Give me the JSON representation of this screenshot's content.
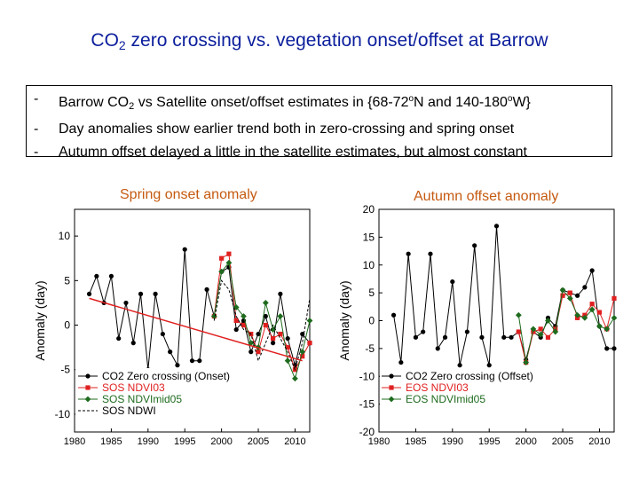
{
  "title": {
    "prefix": "CO",
    "subscript": "2",
    "suffix": " zero crossing vs. vegetation onset/offset at Barrow"
  },
  "bullets": {
    "dash": "-",
    "b1": {
      "part1": "Barrow CO",
      "sub": "2",
      "part2": " vs Satellite onset/offset estimates in {68-72",
      "sup1": "o",
      "part3": "N and 140-180",
      "sup2": "o",
      "part4": "W}"
    },
    "b2": "Day anomalies show earlier trend both in zero-crossing and spring onset",
    "b3": "Autumn offset delayed a little in the satellite estimates, but almost constant"
  },
  "colors": {
    "black": "#000000",
    "red": "#e02020",
    "green": "#1e6b1e",
    "trend": "#e02020",
    "title": "#0b1e9c",
    "caption": "#c55a11"
  },
  "chart_data": [
    {
      "type": "line",
      "caption": "Spring onset anomaly",
      "ylabel": "Anomaly (day)",
      "xlim": [
        1980,
        2012
      ],
      "ylim": [
        -12,
        13
      ],
      "xticks": [
        1980,
        1985,
        1990,
        1995,
        2000,
        2005,
        2010
      ],
      "yticks": [
        -10,
        -5,
        0,
        5,
        10
      ],
      "legend": "bottom-left",
      "series": [
        {
          "name": "CO2 Zero crossing (Onset)",
          "style": "black-circle",
          "x": [
            1982,
            1983,
            1984,
            1985,
            1986,
            1987,
            1988,
            1989,
            1990,
            1991,
            1992,
            1993,
            1994,
            1995,
            1996,
            1997,
            1998,
            1999,
            2000,
            2001,
            2002,
            2003,
            2004,
            2005,
            2006,
            2007,
            2008,
            2009,
            2010,
            2011,
            2012
          ],
          "y": [
            3.5,
            5.5,
            2.5,
            5.5,
            -1.5,
            2.5,
            -2,
            3.5,
            -5,
            3.5,
            -1,
            -3,
            -4.5,
            8.5,
            -4,
            -4,
            4,
            1,
            6,
            6.5,
            -0.5,
            0.5,
            -3,
            -1,
            1,
            -2,
            3.5,
            -1.5,
            -4.5,
            -1,
            -2
          ]
        },
        {
          "name": "SOS NDVI03",
          "style": "red-square",
          "x": [
            1999,
            2000,
            2001,
            2002,
            2003,
            2004,
            2005,
            2006,
            2007,
            2008,
            2009,
            2010,
            2011,
            2012
          ],
          "y": [
            1,
            7.5,
            8,
            0.5,
            0,
            -1,
            -3,
            0,
            -1.5,
            -1,
            -2.5,
            -5,
            -3.5,
            -2
          ]
        },
        {
          "name": "SOS NDVImid05",
          "style": "green-diamond",
          "x": [
            1999,
            2000,
            2001,
            2002,
            2003,
            2004,
            2005,
            2006,
            2007,
            2008,
            2009,
            2010,
            2011,
            2012
          ],
          "y": [
            1,
            6,
            7,
            2,
            1,
            -2,
            -2.5,
            2.5,
            -0.5,
            1,
            -4,
            -6,
            -3,
            0.5
          ]
        },
        {
          "name": "SOS NDWI",
          "style": "black-dashed",
          "x": [
            1999,
            2000,
            2001,
            2002,
            2003,
            2004,
            2005,
            2006,
            2007,
            2008,
            2009,
            2010,
            2011,
            2012
          ],
          "y": [
            0.5,
            5,
            4,
            1,
            -0.5,
            -1,
            -4,
            -2,
            0,
            -1.5,
            -3,
            -5,
            -2,
            3
          ]
        },
        {
          "name": "Onset trend",
          "style": "trend",
          "legend": false,
          "x": [
            1982,
            2011
          ],
          "y": [
            3.0,
            -4.0
          ]
        }
      ]
    },
    {
      "type": "line",
      "caption": "Autumn offset anomaly",
      "ylabel": "Anomaly (day)",
      "xlim": [
        1980,
        2012
      ],
      "ylim": [
        -20,
        20
      ],
      "xticks": [
        1980,
        1985,
        1990,
        1995,
        2000,
        2005,
        2010
      ],
      "yticks": [
        -20,
        -15,
        -10,
        -5,
        0,
        5,
        10,
        15,
        20
      ],
      "legend": "bottom-left",
      "series": [
        {
          "name": "CO2 Zero crossing (Offset)",
          "style": "black-circle",
          "x": [
            1982,
            1983,
            1984,
            1985,
            1986,
            1987,
            1988,
            1989,
            1990,
            1991,
            1992,
            1993,
            1994,
            1995,
            1996,
            1997,
            1998,
            1999,
            2000,
            2001,
            2002,
            2003,
            2004,
            2005,
            2006,
            2007,
            2008,
            2009,
            2010,
            2011,
            2012
          ],
          "y": [
            1,
            -7.5,
            12,
            -3,
            -2,
            12,
            -5,
            -3,
            7,
            -8,
            -2,
            13.5,
            -3,
            -8,
            17,
            -3,
            -3,
            -2,
            -7,
            -2,
            -3,
            0.5,
            -1,
            5.5,
            5,
            4.5,
            6,
            9,
            -1,
            -5,
            -5
          ]
        },
        {
          "name": "EOS NDVI03",
          "style": "red-square",
          "x": [
            1999,
            2000,
            2001,
            2002,
            2003,
            2004,
            2005,
            2006,
            2007,
            2008,
            2009,
            2010,
            2011,
            2012
          ],
          "y": [
            -2,
            -7.5,
            -2,
            -1.5,
            -3,
            -1.5,
            4.5,
            5,
            0.5,
            1,
            3,
            1.5,
            -1.5,
            4
          ]
        },
        {
          "name": "EOS NDVImid05",
          "style": "green-diamond",
          "x": [
            1999,
            2000,
            2001,
            2002,
            2003,
            2004,
            2005,
            2006,
            2007,
            2008,
            2009,
            2010,
            2011,
            2012
          ],
          "y": [
            1,
            -7.5,
            -1.5,
            -2.5,
            0,
            -2,
            5.5,
            4,
            1,
            0.5,
            2,
            -1,
            -1.5,
            0.5
          ]
        }
      ]
    }
  ]
}
